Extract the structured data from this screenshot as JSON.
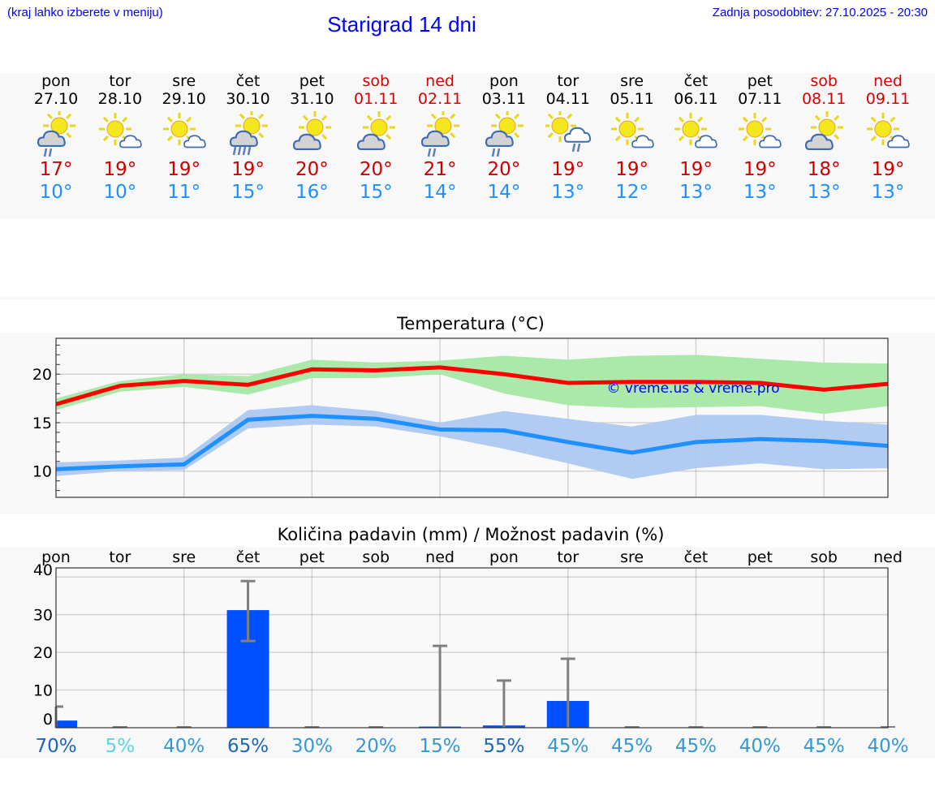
{
  "header": {
    "menu_hint": "(kraj lahko izberete v meniju)",
    "title": "Starigrad 14 dni",
    "last_update": "Zadnja posodobitev: 27.10.2025 - 20:30"
  },
  "days": [
    {
      "name": "pon",
      "date": "27.10",
      "weekend": false,
      "icon": "cloud-sun-rain-icon",
      "max": "17°",
      "min": "10°"
    },
    {
      "name": "tor",
      "date": "28.10",
      "weekend": false,
      "icon": "sun-small-cloud-icon",
      "max": "19°",
      "min": "10°"
    },
    {
      "name": "sre",
      "date": "29.10",
      "weekend": false,
      "icon": "sun-small-cloud-icon",
      "max": "19°",
      "min": "11°"
    },
    {
      "name": "čet",
      "date": "30.10",
      "weekend": false,
      "icon": "cloud-sun-heavy-rain-icon",
      "max": "19°",
      "min": "15°"
    },
    {
      "name": "pet",
      "date": "31.10",
      "weekend": false,
      "icon": "cloud-sun-icon",
      "max": "20°",
      "min": "16°"
    },
    {
      "name": "sob",
      "date": "01.11",
      "weekend": true,
      "icon": "cloud-sun-icon",
      "max": "20°",
      "min": "15°"
    },
    {
      "name": "ned",
      "date": "02.11",
      "weekend": true,
      "icon": "cloud-sun-rain-icon",
      "max": "21°",
      "min": "14°"
    },
    {
      "name": "pon",
      "date": "03.11",
      "weekend": false,
      "icon": "cloud-sun-rain-icon",
      "max": "20°",
      "min": "14°"
    },
    {
      "name": "tor",
      "date": "04.11",
      "weekend": false,
      "icon": "sun-cloud-rain-icon",
      "max": "19°",
      "min": "13°"
    },
    {
      "name": "sre",
      "date": "05.11",
      "weekend": false,
      "icon": "sun-small-cloud-icon",
      "max": "19°",
      "min": "12°"
    },
    {
      "name": "čet",
      "date": "06.11",
      "weekend": false,
      "icon": "sun-small-cloud-icon",
      "max": "19°",
      "min": "13°"
    },
    {
      "name": "pet",
      "date": "07.11",
      "weekend": false,
      "icon": "sun-small-cloud-icon",
      "max": "19°",
      "min": "13°"
    },
    {
      "name": "sob",
      "date": "08.11",
      "weekend": true,
      "icon": "cloud-sun-icon",
      "max": "18°",
      "min": "13°"
    },
    {
      "name": "ned",
      "date": "09.11",
      "weekend": true,
      "icon": "sun-small-cloud-icon",
      "max": "19°",
      "min": "13°"
    }
  ],
  "colors": {
    "max": "#ff0000",
    "min": "#1e90ff",
    "max_band": "#abe9ab",
    "min_band": "#adc8f2",
    "bar": "#0050ff",
    "err": "#808080",
    "pct_high": "#1a66b8",
    "pct_mid": "#3399d6",
    "pct_low": "#55d5e8"
  },
  "chart_data": [
    {
      "type": "line",
      "title": "Temperatura (°C)",
      "watermark": "© vreme.us & vreme.pro",
      "x": [
        "27.10",
        "28.10",
        "29.10",
        "30.10",
        "31.10",
        "01.11",
        "02.11",
        "03.11",
        "04.11",
        "05.11",
        "06.11",
        "07.11",
        "08.11",
        "09.11"
      ],
      "ylim": [
        7.3,
        23.7
      ],
      "yticks": [
        10,
        15,
        20
      ],
      "grid": true,
      "series": [
        {
          "name": "max",
          "values": [
            16.9,
            18.8,
            19.3,
            18.9,
            20.5,
            20.4,
            20.7,
            20.0,
            19.1,
            19.2,
            19.2,
            19.1,
            18.4,
            19.0
          ],
          "upper": [
            17.5,
            19.3,
            20.0,
            19.8,
            21.5,
            21.2,
            21.4,
            21.9,
            21.5,
            21.9,
            22.0,
            21.6,
            21.2,
            21.1
          ],
          "lower": [
            16.3,
            18.2,
            18.7,
            17.9,
            19.6,
            19.6,
            20.0,
            18.0,
            16.8,
            16.5,
            16.6,
            16.7,
            15.9,
            16.7
          ]
        },
        {
          "name": "min",
          "values": [
            10.2,
            10.5,
            10.7,
            15.3,
            15.7,
            15.4,
            14.3,
            14.2,
            13.0,
            11.9,
            13.0,
            13.3,
            13.1,
            12.6
          ],
          "upper": [
            10.9,
            11.1,
            11.4,
            16.3,
            16.8,
            16.2,
            15.0,
            16.2,
            15.4,
            14.6,
            15.8,
            15.8,
            15.2,
            14.8
          ],
          "lower": [
            9.5,
            10.0,
            10.1,
            14.4,
            14.8,
            14.6,
            13.6,
            12.3,
            10.8,
            9.2,
            10.3,
            10.8,
            10.2,
            10.3
          ]
        }
      ]
    },
    {
      "type": "bar",
      "title": "Količina padavin (mm) / Možnost padavin (%)",
      "categories": [
        "pon",
        "tor",
        "sre",
        "čet",
        "pet",
        "sob",
        "ned",
        "pon",
        "tor",
        "sre",
        "čet",
        "pet",
        "sob",
        "ned"
      ],
      "ylim": [
        0,
        42.4
      ],
      "yticks": [
        0,
        10,
        20,
        30,
        40
      ],
      "values": [
        1.9,
        0,
        0,
        31.2,
        0,
        0,
        0.3,
        0.6,
        7.1,
        0,
        0,
        0,
        0,
        0
      ],
      "err_low": [
        0,
        0,
        0,
        23,
        0,
        0,
        0,
        0,
        0,
        0,
        0,
        0,
        0,
        0
      ],
      "err_high": [
        5.6,
        0,
        0,
        38.9,
        0,
        0,
        21.7,
        12.5,
        18.3,
        0,
        0,
        0,
        0,
        0
      ],
      "probability": [
        "70%",
        "5%",
        "40%",
        "65%",
        "30%",
        "20%",
        "15%",
        "55%",
        "45%",
        "45%",
        "45%",
        "40%",
        "45%",
        "40%"
      ],
      "probability_values": [
        70,
        5,
        40,
        65,
        30,
        20,
        15,
        55,
        45,
        45,
        45,
        40,
        45,
        40
      ]
    }
  ]
}
